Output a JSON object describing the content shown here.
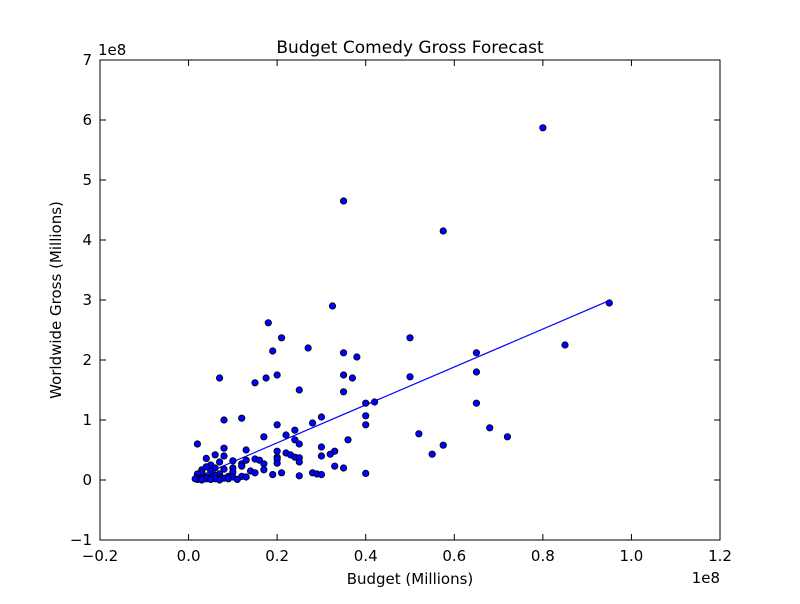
{
  "chart_data": {
    "type": "scatter",
    "title": "Budget Comedy Gross Forecast",
    "xlabel": "Budget (Millions)",
    "ylabel": "Worldwide Gross (Millions)",
    "x_offset_label": "1e8",
    "y_offset_label": "1e8",
    "xlim": [
      -0.2,
      1.2
    ],
    "ylim": [
      -1,
      7
    ],
    "xticks": [
      -0.2,
      0.0,
      0.2,
      0.4,
      0.6,
      0.8,
      1.0,
      1.2
    ],
    "yticks": [
      -1,
      0,
      1,
      2,
      3,
      4,
      5,
      6,
      7
    ],
    "xtick_labels": [
      "−0.2",
      "0.0",
      "0.2",
      "0.4",
      "0.6",
      "0.8",
      "1.0",
      "1.2"
    ],
    "ytick_labels": [
      "−1",
      "0",
      "1",
      "2",
      "3",
      "4",
      "5",
      "6",
      "7"
    ],
    "grid": false,
    "point_color": "#0000ff",
    "line_color": "#0000ff",
    "fit_line": [
      [
        0.02,
        0.05
      ],
      [
        0.95,
        2.99
      ]
    ],
    "points": [
      [
        0.8,
        5.87
      ],
      [
        0.35,
        4.65
      ],
      [
        0.575,
        4.15
      ],
      [
        0.95,
        2.95
      ],
      [
        0.325,
        2.9
      ],
      [
        0.18,
        2.62
      ],
      [
        0.21,
        2.37
      ],
      [
        0.5,
        2.37
      ],
      [
        0.85,
        2.25
      ],
      [
        0.27,
        2.2
      ],
      [
        0.19,
        2.15
      ],
      [
        0.35,
        2.12
      ],
      [
        0.65,
        2.12
      ],
      [
        0.38,
        2.05
      ],
      [
        0.65,
        1.8
      ],
      [
        0.35,
        1.75
      ],
      [
        0.2,
        1.75
      ],
      [
        0.07,
        1.7
      ],
      [
        0.175,
        1.7
      ],
      [
        0.37,
        1.7
      ],
      [
        0.5,
        1.72
      ],
      [
        0.15,
        1.62
      ],
      [
        0.25,
        1.5
      ],
      [
        0.35,
        1.47
      ],
      [
        0.4,
        1.28
      ],
      [
        0.42,
        1.3
      ],
      [
        0.65,
        1.28
      ],
      [
        0.4,
        1.07
      ],
      [
        0.3,
        1.05
      ],
      [
        0.12,
        1.03
      ],
      [
        0.08,
        1.0
      ],
      [
        0.28,
        0.95
      ],
      [
        0.2,
        0.92
      ],
      [
        0.4,
        0.92
      ],
      [
        0.68,
        0.87
      ],
      [
        0.24,
        0.83
      ],
      [
        0.22,
        0.75
      ],
      [
        0.52,
        0.77
      ],
      [
        0.17,
        0.72
      ],
      [
        0.72,
        0.72
      ],
      [
        0.24,
        0.67
      ],
      [
        0.36,
        0.67
      ],
      [
        0.25,
        0.6
      ],
      [
        0.02,
        0.6
      ],
      [
        0.575,
        0.58
      ],
      [
        0.3,
        0.55
      ],
      [
        0.08,
        0.53
      ],
      [
        0.13,
        0.5
      ],
      [
        0.2,
        0.48
      ],
      [
        0.33,
        0.48
      ],
      [
        0.22,
        0.45
      ],
      [
        0.32,
        0.43
      ],
      [
        0.55,
        0.43
      ],
      [
        0.06,
        0.42
      ],
      [
        0.23,
        0.42
      ],
      [
        0.3,
        0.4
      ],
      [
        0.08,
        0.4
      ],
      [
        0.2,
        0.38
      ],
      [
        0.24,
        0.38
      ],
      [
        0.04,
        0.36
      ],
      [
        0.25,
        0.37
      ],
      [
        0.15,
        0.35
      ],
      [
        0.2,
        0.35
      ],
      [
        0.16,
        0.33
      ],
      [
        0.13,
        0.33
      ],
      [
        0.1,
        0.32
      ],
      [
        0.07,
        0.3
      ],
      [
        0.25,
        0.3
      ],
      [
        0.2,
        0.28
      ],
      [
        0.12,
        0.27
      ],
      [
        0.17,
        0.27
      ],
      [
        0.05,
        0.25
      ],
      [
        0.33,
        0.23
      ],
      [
        0.12,
        0.23
      ],
      [
        0.04,
        0.22
      ],
      [
        0.35,
        0.2
      ],
      [
        0.06,
        0.2
      ],
      [
        0.1,
        0.2
      ],
      [
        0.08,
        0.18
      ],
      [
        0.03,
        0.17
      ],
      [
        0.17,
        0.17
      ],
      [
        0.14,
        0.15
      ],
      [
        0.05,
        0.15
      ],
      [
        0.1,
        0.13
      ],
      [
        0.21,
        0.12
      ],
      [
        0.03,
        0.12
      ],
      [
        0.15,
        0.12
      ],
      [
        0.28,
        0.12
      ],
      [
        0.4,
        0.11
      ],
      [
        0.29,
        0.1
      ],
      [
        0.3,
        0.09
      ],
      [
        0.19,
        0.09
      ],
      [
        0.07,
        0.1
      ],
      [
        0.02,
        0.1
      ],
      [
        0.06,
        0.08
      ],
      [
        0.25,
        0.07
      ],
      [
        0.12,
        0.06
      ],
      [
        0.13,
        0.05
      ],
      [
        0.09,
        0.06
      ],
      [
        0.05,
        0.05
      ],
      [
        0.1,
        0.05
      ],
      [
        0.04,
        0.05
      ],
      [
        0.02,
        0.04
      ],
      [
        0.07,
        0.04
      ],
      [
        0.08,
        0.03
      ],
      [
        0.03,
        0.03
      ],
      [
        0.06,
        0.02
      ],
      [
        0.04,
        0.02
      ],
      [
        0.09,
        0.02
      ],
      [
        0.02,
        0.01
      ],
      [
        0.05,
        0.01
      ],
      [
        0.03,
        0.0
      ],
      [
        0.07,
        0.0
      ],
      [
        0.11,
        0.01
      ],
      [
        0.015,
        0.02
      ]
    ]
  }
}
